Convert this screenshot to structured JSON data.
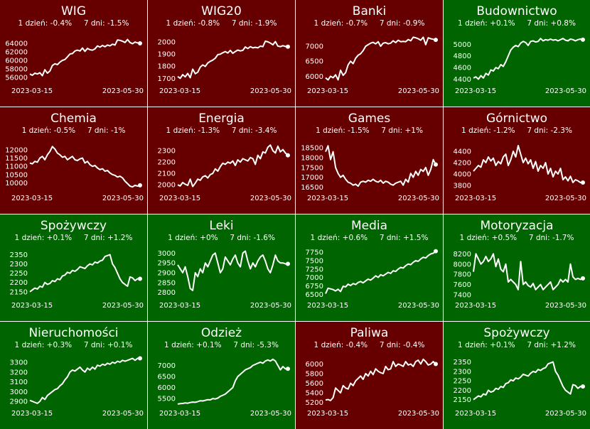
{
  "colors": {
    "down": "#660000",
    "up": "#006400",
    "line": "#ffffff"
  },
  "labels": {
    "day1": "1 dzień:",
    "day7": "7 dni:"
  },
  "charts": [
    {
      "title": "WIG",
      "d1": "-0.4%",
      "d7": "-1.5%",
      "trend": "down",
      "date_start": "2023-03-15",
      "date_end": "2023-05-30",
      "yticks": [
        56000,
        58000,
        60000,
        62000,
        64000
      ],
      "ylim": [
        54500,
        66500
      ],
      "values": [
        56800,
        56500,
        57000,
        56800,
        57100,
        56400,
        57800,
        57000,
        57500,
        58800,
        59200,
        59000,
        59600,
        60000,
        60200,
        60800,
        61500,
        61600,
        62200,
        62400,
        62200,
        62900,
        62100,
        62800,
        62500,
        62400,
        62700,
        63400,
        63100,
        63500,
        63200,
        63600,
        63400,
        63800,
        63600,
        64800,
        64700,
        64500,
        64200,
        64900,
        64200,
        63900,
        64300,
        64100,
        64000
      ]
    },
    {
      "title": "WIG20",
      "d1": "-0.8%",
      "d7": "-1.9%",
      "trend": "down",
      "date_start": "2023-03-15",
      "date_end": "2023-05-30",
      "yticks": [
        1700,
        1800,
        1900,
        2000
      ],
      "ylim": [
        1655,
        2075
      ],
      "values": [
        1715,
        1700,
        1730,
        1712,
        1740,
        1705,
        1775,
        1738,
        1750,
        1792,
        1810,
        1798,
        1826,
        1840,
        1850,
        1865,
        1895,
        1898,
        1910,
        1920,
        1908,
        1930,
        1905,
        1920,
        1932,
        1925,
        1930,
        1958,
        1945,
        1960,
        1950,
        1955,
        1950,
        1965,
        1960,
        2005,
        2000,
        1990,
        1975,
        2002,
        1965,
        1960,
        1968,
        1962,
        1960
      ]
    },
    {
      "title": "Banki",
      "d1": "-0.7%",
      "d7": "-0.9%",
      "trend": "down",
      "date_start": "2023-03-15",
      "date_end": "2023-05-30",
      "yticks": [
        6000,
        6500,
        7000
      ],
      "ylim": [
        5750,
        7450
      ],
      "values": [
        5950,
        5880,
        6000,
        5950,
        6050,
        5880,
        6200,
        6030,
        6120,
        6380,
        6500,
        6420,
        6600,
        6700,
        6750,
        6850,
        7000,
        7050,
        7100,
        7130,
        7080,
        7150,
        7000,
        7100,
        7120,
        7080,
        7100,
        7180,
        7120,
        7200,
        7150,
        7160,
        7150,
        7220,
        7180,
        7300,
        7280,
        7250,
        7200,
        7300,
        7050,
        7280,
        7250,
        7230,
        7210
      ]
    },
    {
      "title": "Budownictwo",
      "d1": "+0.1%",
      "d7": "+0.8%",
      "trend": "up",
      "date_start": "2023-03-15",
      "date_end": "2023-05-30",
      "yticks": [
        4400,
        4600,
        4800,
        5000
      ],
      "ylim": [
        4320,
        5200
      ],
      "values": [
        4420,
        4440,
        4400,
        4460,
        4420,
        4500,
        4470,
        4560,
        4540,
        4600,
        4580,
        4650,
        4620,
        4700,
        4800,
        4900,
        4950,
        4980,
        4960,
        5020,
        5050,
        5030,
        4980,
        5050,
        5060,
        5040,
        5050,
        5100,
        5060,
        5080,
        5070,
        5090,
        5070,
        5080,
        5060,
        5080,
        5100,
        5070,
        5060,
        5090,
        5080,
        5060,
        5080,
        5090,
        5080
      ]
    },
    {
      "title": "Chemia",
      "d1": "-0.5%",
      "d7": "-1%",
      "trend": "down",
      "date_start": "2023-03-15",
      "date_end": "2023-05-30",
      "yticks": [
        10000,
        10500,
        11000,
        11500,
        12000
      ],
      "ylim": [
        9500,
        12600
      ],
      "values": [
        11200,
        11150,
        11300,
        11250,
        11500,
        11600,
        11400,
        11700,
        11900,
        12200,
        12050,
        11800,
        11700,
        11550,
        11600,
        11400,
        11500,
        11600,
        11400,
        11350,
        11450,
        11500,
        11200,
        11300,
        11100,
        11000,
        11050,
        10900,
        10800,
        10850,
        10700,
        10750,
        10600,
        10500,
        10450,
        10350,
        10400,
        10300,
        10100,
        9950,
        9800,
        9750,
        9850,
        9800,
        9850
      ]
    },
    {
      "title": "Energia",
      "d1": "-1.3%",
      "d7": "-3.4%",
      "trend": "down",
      "date_start": "2023-03-15",
      "date_end": "2023-05-30",
      "yticks": [
        2000,
        2100,
        2200,
        2300
      ],
      "ylim": [
        1945,
        2395
      ],
      "values": [
        2000,
        1990,
        2020,
        2005,
        1995,
        2050,
        1985,
        2015,
        2050,
        2040,
        2070,
        2080,
        2060,
        2090,
        2100,
        2140,
        2120,
        2160,
        2190,
        2180,
        2200,
        2190,
        2210,
        2170,
        2220,
        2200,
        2230,
        2220,
        2210,
        2240,
        2230,
        2180,
        2260,
        2230,
        2290,
        2280,
        2330,
        2350,
        2300,
        2280,
        2340,
        2290,
        2310,
        2280,
        2260
      ]
    },
    {
      "title": "Games",
      "d1": "-1.5%",
      "d7": "+1%",
      "trend": "down",
      "date_start": "2023-03-15",
      "date_end": "2023-05-30",
      "yticks": [
        16500,
        17000,
        17500,
        18000,
        18500
      ],
      "ylim": [
        16300,
        18900
      ],
      "values": [
        18300,
        18600,
        17900,
        18300,
        17500,
        17200,
        17000,
        17100,
        16900,
        16750,
        16700,
        16600,
        16650,
        16550,
        16750,
        16800,
        16750,
        16850,
        16800,
        16900,
        16800,
        16750,
        16850,
        16700,
        16800,
        16750,
        16650,
        16600,
        16700,
        16750,
        16800,
        16600,
        16900,
        16750,
        17200,
        17000,
        17300,
        17100,
        17400,
        17300,
        17500,
        17100,
        17400,
        17900,
        17650
      ]
    },
    {
      "title": "Górnictwo",
      "d1": "-1.2%",
      "d7": "-2.3%",
      "trend": "down",
      "date_start": "2023-03-15",
      "date_end": "2023-05-30",
      "yticks": [
        3800,
        4000,
        4200,
        4400
      ],
      "ylim": [
        3700,
        4600
      ],
      "values": [
        4050,
        4100,
        4150,
        4120,
        4250,
        4200,
        4300,
        4230,
        4280,
        4150,
        4220,
        4180,
        4300,
        4350,
        4150,
        4250,
        4400,
        4300,
        4500,
        4350,
        4200,
        4280,
        4180,
        4250,
        4100,
        4220,
        4050,
        4150,
        4100,
        4200,
        4000,
        4100,
        3950,
        4050,
        4000,
        4100,
        3900,
        3950,
        3880,
        3960,
        3850,
        3900,
        3880,
        3850,
        3850
      ]
    },
    {
      "title": "Spożywczy",
      "d1": "+0.1%",
      "d7": "+1.2%",
      "trend": "up",
      "date_start": "2023-03-15",
      "date_end": "2023-05-30",
      "yticks": [
        2150,
        2200,
        2250,
        2300,
        2350
      ],
      "ylim": [
        2115,
        2390
      ],
      "values": [
        2150,
        2160,
        2170,
        2165,
        2180,
        2175,
        2200,
        2190,
        2195,
        2210,
        2205,
        2220,
        2215,
        2235,
        2240,
        2255,
        2250,
        2265,
        2260,
        2270,
        2285,
        2280,
        2275,
        2290,
        2300,
        2295,
        2310,
        2305,
        2315,
        2320,
        2340,
        2345,
        2350,
        2300,
        2280,
        2250,
        2220,
        2200,
        2190,
        2180,
        2230,
        2225,
        2210,
        2220,
        2220
      ]
    },
    {
      "title": "Leki",
      "d1": "+0%",
      "d7": "-1.6%",
      "trend": "up",
      "date_start": "2023-03-15",
      "date_end": "2023-05-30",
      "yticks": [
        2800,
        2850,
        2900,
        2950,
        3000
      ],
      "ylim": [
        2770,
        3030
      ],
      "values": [
        2940,
        2920,
        2900,
        2930,
        2880,
        2820,
        2810,
        2900,
        2880,
        2920,
        2900,
        2950,
        2930,
        2960,
        2990,
        3000,
        2950,
        2900,
        2920,
        2980,
        2960,
        2940,
        2970,
        2990,
        2950,
        2930,
        3000,
        3010,
        2960,
        2920,
        2950,
        2930,
        2960,
        2980,
        2990,
        2960,
        2920,
        2900,
        2940,
        2990,
        2960,
        2950,
        2950,
        2945,
        2945
      ]
    },
    {
      "title": "Media",
      "d1": "+0.6%",
      "d7": "+1.5%",
      "trend": "up",
      "date_start": "2023-03-15",
      "date_end": "2023-05-30",
      "yticks": [
        6500,
        6750,
        7000,
        7250,
        7500,
        7750
      ],
      "ylim": [
        6380,
        7900
      ],
      "values": [
        6520,
        6680,
        6660,
        6640,
        6600,
        6650,
        6580,
        6740,
        6720,
        6800,
        6760,
        6820,
        6790,
        6850,
        6880,
        6840,
        6900,
        6950,
        6920,
        6980,
        7050,
        7000,
        7080,
        7050,
        7100,
        7150,
        7120,
        7200,
        7180,
        7250,
        7300,
        7280,
        7350,
        7400,
        7380,
        7450,
        7500,
        7480,
        7550,
        7600,
        7580,
        7650,
        7700,
        7720,
        7780
      ]
    },
    {
      "title": "Motoryzacja",
      "d1": "+0.5%",
      "d7": "-1.7%",
      "trend": "up",
      "date_start": "2023-03-15",
      "date_end": "2023-05-30",
      "yticks": [
        7400,
        7600,
        7800,
        8000,
        8200
      ],
      "ylim": [
        7330,
        8330
      ],
      "values": [
        7850,
        8200,
        8100,
        8000,
        8050,
        8150,
        8050,
        8100,
        8200,
        7950,
        8100,
        7900,
        7850,
        8000,
        7650,
        7700,
        7650,
        7600,
        7500,
        8050,
        7600,
        7650,
        7580,
        7550,
        7620,
        7500,
        7550,
        7600,
        7500,
        7550,
        7600,
        7650,
        7500,
        7550,
        7600,
        7700,
        7650,
        7700,
        7650,
        8000,
        7750,
        7700,
        7720,
        7700,
        7720
      ]
    },
    {
      "title": "Nieruchomości",
      "d1": "+0.3%",
      "d7": "+0.1%",
      "trend": "up",
      "date_start": "2023-03-15",
      "date_end": "2023-05-30",
      "yticks": [
        2900,
        3000,
        3100,
        3200,
        3300
      ],
      "ylim": [
        2850,
        3380
      ],
      "values": [
        2910,
        2900,
        2890,
        2880,
        2900,
        2940,
        2920,
        2960,
        2980,
        3000,
        3020,
        3030,
        3060,
        3080,
        3120,
        3150,
        3200,
        3220,
        3210,
        3230,
        3250,
        3220,
        3200,
        3240,
        3220,
        3250,
        3230,
        3270,
        3260,
        3280,
        3270,
        3290,
        3280,
        3300,
        3290,
        3310,
        3300,
        3320,
        3310,
        3320,
        3330,
        3340,
        3320,
        3340,
        3340
      ]
    },
    {
      "title": "Odzież",
      "d1": "+0.1%",
      "d7": "-5.3%",
      "trend": "up",
      "date_start": "2023-03-15",
      "date_end": "2023-05-30",
      "yticks": [
        5500,
        6000,
        6500,
        7000
      ],
      "ylim": [
        5150,
        7500
      ],
      "values": [
        5250,
        5270,
        5280,
        5300,
        5290,
        5320,
        5340,
        5330,
        5360,
        5400,
        5390,
        5420,
        5450,
        5440,
        5500,
        5480,
        5520,
        5600,
        5650,
        5700,
        5800,
        5900,
        6000,
        6300,
        6500,
        6600,
        6700,
        6800,
        6850,
        6900,
        7000,
        7050,
        7100,
        7150,
        7100,
        7200,
        7250,
        7200,
        7280,
        7200,
        7000,
        6800,
        6950,
        6850,
        6850
      ]
    },
    {
      "title": "Paliwa",
      "d1": "-0.4%",
      "d7": "-0.4%",
      "trend": "down",
      "date_start": "2023-03-15",
      "date_end": "2023-05-30",
      "yticks": [
        5200,
        5400,
        5600,
        5800,
        6000
      ],
      "ylim": [
        5120,
        6200
      ],
      "values": [
        5250,
        5260,
        5240,
        5300,
        5500,
        5450,
        5400,
        5550,
        5500,
        5480,
        5600,
        5550,
        5650,
        5700,
        5750,
        5680,
        5800,
        5750,
        5850,
        5780,
        5900,
        5850,
        5820,
        5800,
        5950,
        5880,
        5900,
        6050,
        5950,
        6000,
        5980,
        5950,
        6050,
        5980,
        6000,
        5950,
        6050,
        6080,
        6000,
        6100,
        6050,
        5980,
        6000,
        6050,
        6000
      ]
    },
    {
      "title": "Spożywczy",
      "d1": "+0.1%",
      "d7": "+1.2%",
      "trend": "up",
      "date_start": "2023-03-15",
      "date_end": "2023-05-30",
      "yticks": [
        2150,
        2200,
        2250,
        2300,
        2350
      ],
      "ylim": [
        2115,
        2390
      ],
      "values": [
        2150,
        2160,
        2170,
        2165,
        2180,
        2175,
        2200,
        2190,
        2195,
        2210,
        2205,
        2220,
        2215,
        2235,
        2240,
        2255,
        2250,
        2265,
        2260,
        2270,
        2285,
        2280,
        2275,
        2290,
        2300,
        2295,
        2310,
        2305,
        2315,
        2320,
        2340,
        2345,
        2350,
        2300,
        2280,
        2250,
        2220,
        2200,
        2190,
        2180,
        2230,
        2225,
        2210,
        2220,
        2220
      ]
    }
  ]
}
